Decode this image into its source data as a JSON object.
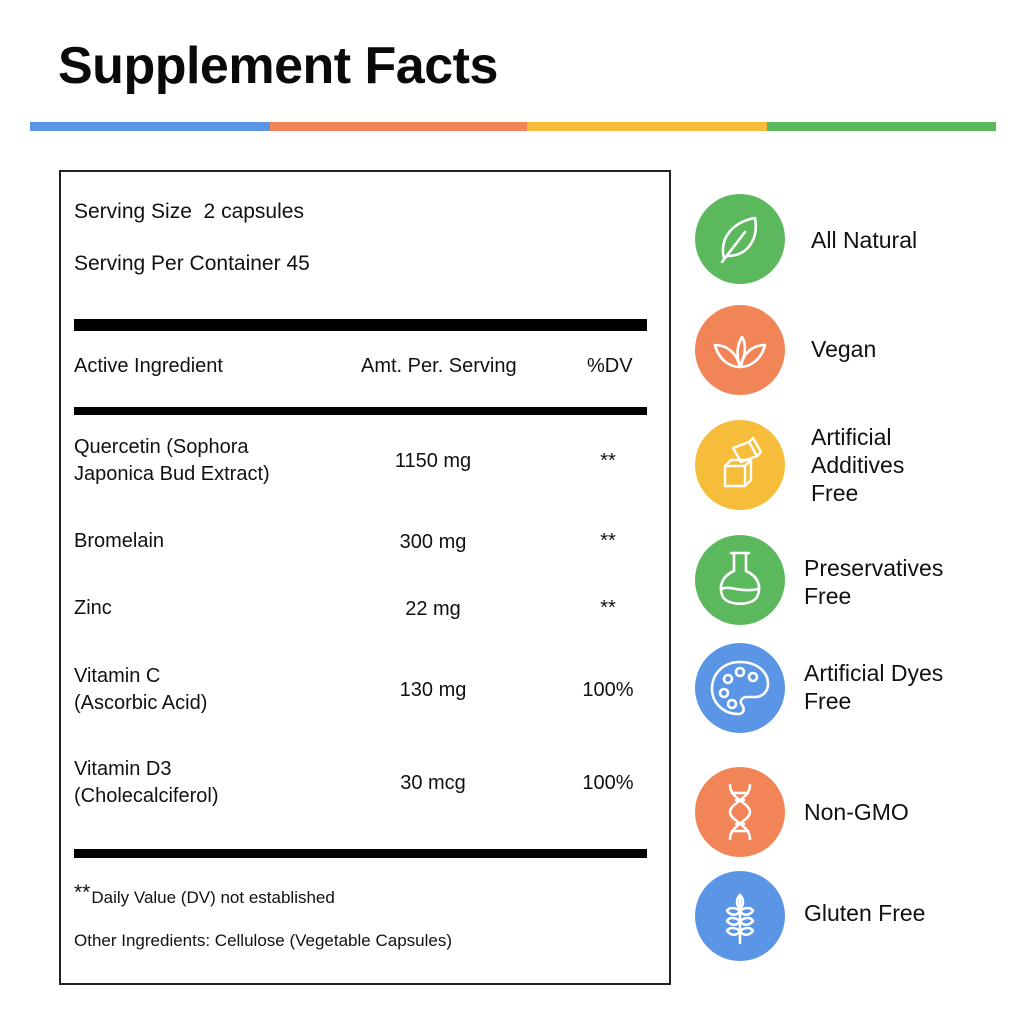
{
  "title": "Supplement Facts",
  "colors": {
    "blue": "#5b95e6",
    "orange": "#f28557",
    "yellow": "#f6bd3b",
    "green": "#5cb85c"
  },
  "serving": {
    "size": "Serving Size  2 capsules",
    "per_container": "Serving Per Container 45"
  },
  "table": {
    "headers": [
      "Active Ingredient",
      "Amt. Per. Serving",
      "%DV"
    ],
    "rows": [
      {
        "ingredient": [
          "Quercetin (Sophora",
          "Japonica Bud Extract)"
        ],
        "amount": "1150 mg",
        "dv": "**"
      },
      {
        "ingredient": [
          "Bromelain"
        ],
        "amount": "300 mg",
        "dv": "**"
      },
      {
        "ingredient": [
          "Zinc"
        ],
        "amount": "22 mg",
        "dv": "**"
      },
      {
        "ingredient": [
          "Vitamin C",
          "(Ascorbic Acid)"
        ],
        "amount": "130 mg",
        "dv": "100%"
      },
      {
        "ingredient": [
          "Vitamin D3",
          "(Cholecalciferol)"
        ],
        "amount": "30 mcg",
        "dv": "100%"
      }
    ]
  },
  "footnote": {
    "stars": "**",
    "text": "Daily Value (DV) not established",
    "other": "Other Ingredients: Cellulose (Vegetable Capsules)"
  },
  "badges": [
    {
      "icon": "leaf-icon",
      "color": "#5cb85c",
      "lines": [
        "All Natural"
      ]
    },
    {
      "icon": "sprout-icon",
      "color": "#f28557",
      "lines": [
        "Vegan"
      ]
    },
    {
      "icon": "sugar-cubes-icon",
      "color": "#f6bd3b",
      "lines": [
        "Artificial",
        "Additives",
        "Free"
      ]
    },
    {
      "icon": "flask-icon",
      "color": "#5cb85c",
      "lines": [
        "Preservatives",
        "Free"
      ]
    },
    {
      "icon": "palette-icon",
      "color": "#5b95e6",
      "lines": [
        "Artificial Dyes",
        "Free"
      ]
    },
    {
      "icon": "dna-icon",
      "color": "#f28557",
      "lines": [
        "Non-GMO"
      ]
    },
    {
      "icon": "wheat-icon",
      "color": "#5b95e6",
      "lines": [
        "Gluten Free"
      ]
    }
  ]
}
